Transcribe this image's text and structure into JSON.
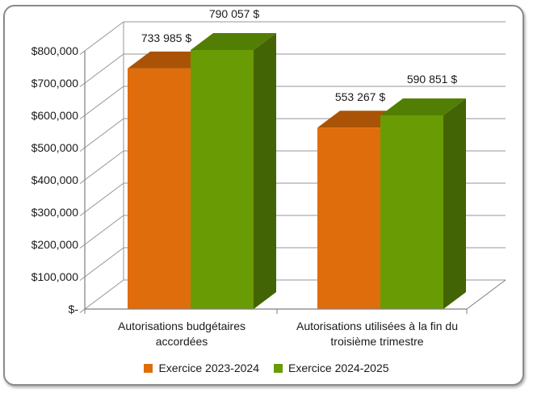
{
  "chart_data": {
    "type": "bar",
    "variant": "3d-clustered-column",
    "title": "",
    "categories": [
      "Autorisations budgétaires accordées",
      "Autorisations utilisées à la fin du troisième trimestre"
    ],
    "category_lines": [
      [
        "Autorisations budgétaires",
        "accordées"
      ],
      [
        "Autorisations utilisées à la fin du",
        "troisième trimestre"
      ]
    ],
    "series": [
      {
        "name": "Exercice 2023-2024",
        "values": [
          733985,
          553267
        ],
        "data_labels": [
          "733 985 $",
          "553 267 $"
        ],
        "color": "#E06D0B",
        "color_top": "#AA5306",
        "color_side": "#8F4505"
      },
      {
        "name": "Exercice 2024-2025",
        "values": [
          790057,
          590851
        ],
        "data_labels": [
          "790 057 $",
          "590 851 $"
        ],
        "color": "#699B05",
        "color_top": "#537E04",
        "color_side": "#436404"
      }
    ],
    "y_axis": {
      "min": 0,
      "max": 800000,
      "step": 100000,
      "tick_labels": [
        "$-",
        "$100,000",
        "$200,000",
        "$300,000",
        "$400,000",
        "$500,000",
        "$600,000",
        "$700,000",
        "$800,000"
      ]
    },
    "legend": {
      "position": "bottom"
    },
    "grid": true
  },
  "colors": {
    "axis": "#7f7f7f",
    "gridline": "#969696",
    "frame_border": "#8a8a8a",
    "background": "#ffffff",
    "text": "#1a1a1a"
  }
}
